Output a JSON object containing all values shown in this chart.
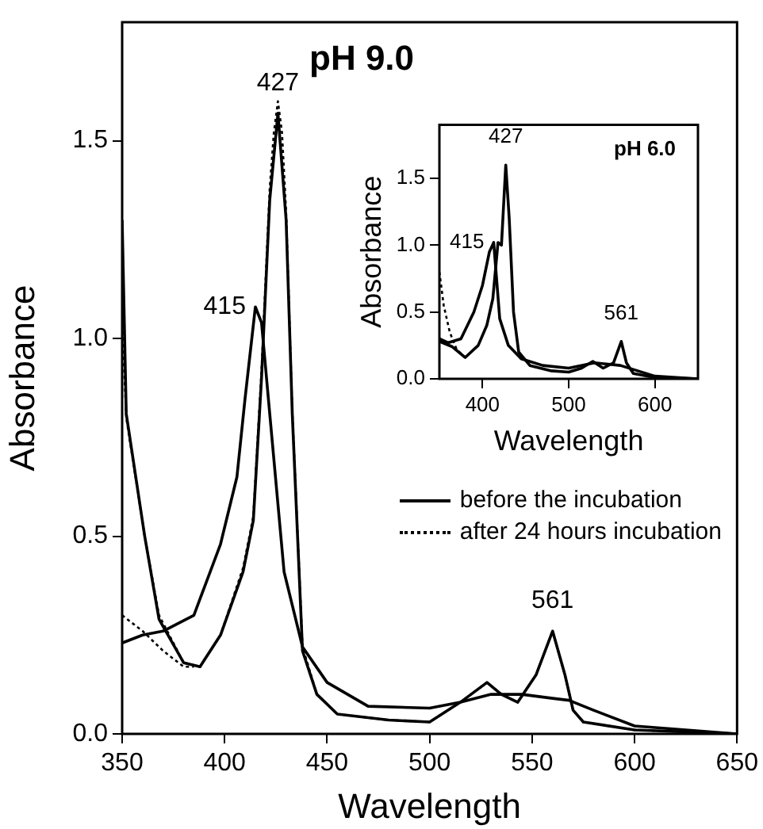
{
  "chart_data": [
    {
      "type": "line",
      "xlabel": "Wavelength",
      "ylabel": "Absorbance",
      "xlim": [
        350,
        650
      ],
      "xticks": [
        350,
        400,
        450,
        500,
        550,
        600,
        650
      ],
      "ylim": [
        0,
        1.8
      ],
      "yticks": [
        {
          "value": 0,
          "label": "0.0"
        },
        {
          "value": 0.5,
          "label": "0.5"
        },
        {
          "value": 1,
          "label": "1.0"
        },
        {
          "value": 1.5,
          "label": "1.5"
        }
      ],
      "legend": "right",
      "marker": "none",
      "series": [
        {
          "name": "before the incubation",
          "color": "#000000",
          "line_style": "solid",
          "x": [
            350,
            352,
            361,
            368,
            380,
            388,
            398,
            409,
            414,
            418,
            422,
            426,
            430,
            433,
            438,
            445,
            455,
            480,
            500,
            515,
            528,
            535,
            543,
            552,
            560,
            566,
            570,
            575,
            600,
            650
          ],
          "values": [
            1.3,
            0.81,
            0.5,
            0.29,
            0.18,
            0.17,
            0.25,
            0.41,
            0.54,
            0.9,
            1.35,
            1.57,
            1.3,
            0.81,
            0.21,
            0.1,
            0.05,
            0.035,
            0.03,
            0.08,
            0.13,
            0.1,
            0.08,
            0.15,
            0.26,
            0.15,
            0.06,
            0.03,
            0.01,
            0
          ]
        },
        {
          "color": "#000000",
          "line_style": "solid",
          "x": [
            350,
            360,
            370,
            385,
            398,
            406,
            410,
            415,
            418,
            422,
            429,
            438,
            450,
            470,
            500,
            515,
            530,
            545,
            560,
            568,
            580,
            600,
            650
          ],
          "values": [
            0.23,
            0.25,
            0.26,
            0.3,
            0.48,
            0.65,
            0.85,
            1.08,
            1.04,
            0.81,
            0.41,
            0.22,
            0.13,
            0.07,
            0.065,
            0.08,
            0.1,
            0.1,
            0.09,
            0.085,
            0.06,
            0.02,
            0
          ]
        },
        {
          "name": "after 24 hours incubation",
          "color": "#000000",
          "line_style": "dotted",
          "x": [
            350,
            352,
            361,
            368,
            380,
            388,
            398,
            409,
            414,
            418,
            422,
            424,
            426,
            428,
            430,
            433,
            438,
            445,
            455,
            480,
            500,
            515,
            528,
            535,
            543,
            552,
            560,
            566,
            570,
            575,
            600,
            650
          ],
          "values": [
            1.05,
            0.8,
            0.5,
            0.3,
            0.18,
            0.17,
            0.25,
            0.42,
            0.55,
            0.92,
            1.38,
            1.52,
            1.6,
            1.52,
            1.32,
            0.82,
            0.22,
            0.1,
            0.05,
            0.035,
            0.03,
            0.08,
            0.13,
            0.1,
            0.08,
            0.15,
            0.26,
            0.15,
            0.06,
            0.03,
            0.01,
            0
          ]
        },
        {
          "color": "#000000",
          "line_style": "dotted",
          "x": [
            350,
            360,
            370,
            380,
            385
          ],
          "values": [
            0.3,
            0.26,
            0.21,
            0.17,
            0.17
          ]
        }
      ],
      "annotations": [
        "pH 9.0",
        {
          "text": "427",
          "x": 426,
          "y": 1.57
        },
        {
          "text": "415",
          "x": 415,
          "y": 1.08
        },
        {
          "text": "561",
          "x": 560,
          "y": 0.26
        }
      ]
    },
    {
      "type": "line",
      "xlabel": "Wavelength",
      "ylabel": "Absorbance",
      "xlim": [
        350,
        650
      ],
      "xticks": [
        400,
        500,
        600
      ],
      "ylim": [
        0,
        1.9
      ],
      "yticks": [
        {
          "value": 0,
          "label": "0.0"
        },
        {
          "value": 0.5,
          "label": "0.5"
        },
        {
          "value": 1,
          "label": "1.0"
        },
        {
          "value": 1.5,
          "label": "1.5"
        }
      ],
      "marker": "none",
      "series": [
        {
          "color": "#000000",
          "line_style": "solid",
          "x": [
            350,
            360,
            375,
            390,
            400,
            408,
            413,
            420,
            430,
            445,
            470,
            500,
            530,
            560,
            580,
            600,
            650
          ],
          "values": [
            0.3,
            0.27,
            0.3,
            0.5,
            0.7,
            0.95,
            1.02,
            0.45,
            0.25,
            0.15,
            0.1,
            0.08,
            0.12,
            0.1,
            0.06,
            0.02,
            0
          ]
        },
        {
          "color": "#000000",
          "line_style": "solid",
          "x": [
            350,
            365,
            380,
            395,
            405,
            412,
            418,
            422,
            427,
            431,
            436,
            442,
            455,
            480,
            500,
            515,
            528,
            540,
            552,
            561,
            567,
            575,
            600,
            650
          ],
          "values": [
            0.28,
            0.24,
            0.16,
            0.25,
            0.4,
            0.6,
            1.02,
            1.0,
            1.6,
            1.2,
            0.5,
            0.2,
            0.1,
            0.06,
            0.05,
            0.08,
            0.13,
            0.08,
            0.12,
            0.28,
            0.12,
            0.04,
            0.01,
            0
          ]
        },
        {
          "color": "#000000",
          "line_style": "dotted",
          "x": [
            350,
            355,
            362,
            370,
            380
          ],
          "values": [
            0.8,
            0.55,
            0.35,
            0.22,
            0.16
          ]
        }
      ],
      "annotations": [
        "pH 6.0",
        {
          "text": "427",
          "x": 427,
          "y": 1.6
        },
        {
          "text": "415",
          "x": 413,
          "y": 1.02
        },
        {
          "text": "561",
          "x": 561,
          "y": 0.28
        }
      ]
    }
  ]
}
